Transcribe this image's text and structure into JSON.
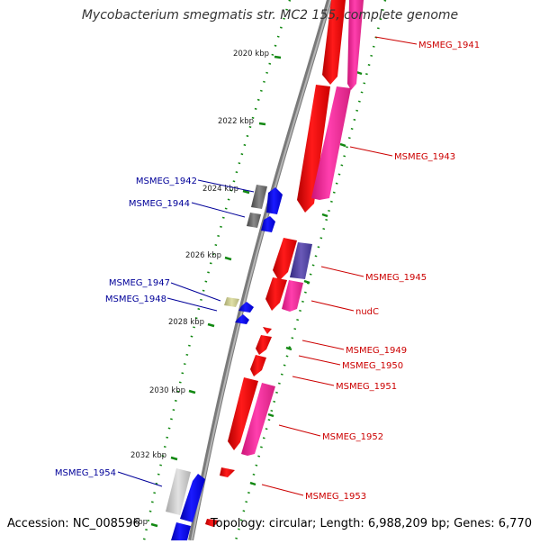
{
  "title": "Mycobacterium smegmatis str. MC2 155, complete genome",
  "accession_text": "Accession: NC_008596",
  "summary_text": "Topology: circular; Length: 6,988,209 bp; Genes: 6,770",
  "colors": {
    "forward_cds": "#ff0000",
    "forward_rna": "#ff2a9d",
    "reverse_cds": "#0000ff",
    "reverse_grey": "#707070",
    "reverse_pseudo": "#cccc88",
    "backbone": "#808080",
    "tick": "#118811",
    "forward_label": "#cc0000",
    "reverse_label": "#000099"
  },
  "ruler": {
    "labels": [
      "2020 kbp",
      "2022 kbp",
      "2024 kbp",
      "2026 kbp",
      "2028 kbp",
      "2030 kbp",
      "2032 kbp",
      "kbp"
    ]
  },
  "forward_labels": [
    "MSMEG_1941",
    "MSMEG_1943",
    "MSMEG_1945",
    "nudC",
    "MSMEG_1949",
    "MSMEG_1950",
    "MSMEG_1951",
    "MSMEG_1952",
    "MSMEG_1953"
  ],
  "reverse_labels": [
    "MSMEG_1942",
    "MSMEG_1944",
    "MSMEG_1947",
    "MSMEG_1948",
    "MSMEG_1954"
  ]
}
